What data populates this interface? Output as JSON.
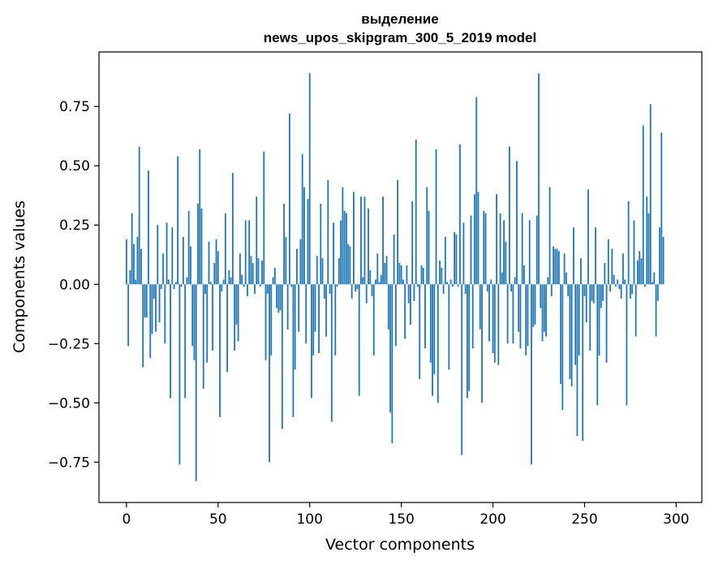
{
  "chart_data": {
    "type": "bar",
    "title_line1": "выделение",
    "title_line2": "news_upos_skipgram_300_5_2019 model",
    "xlabel": "Vector components",
    "ylabel": "Components values",
    "xlim": [
      -15,
      314
    ],
    "ylim": [
      -0.92,
      0.98
    ],
    "xticks": [
      0,
      50,
      100,
      150,
      200,
      250,
      300
    ],
    "xtick_labels": [
      "0",
      "50",
      "100",
      "150",
      "200",
      "250",
      "300"
    ],
    "yticks": [
      -0.75,
      -0.5,
      -0.25,
      0.0,
      0.25,
      0.5,
      0.75
    ],
    "ytick_labels": [
      "−0.75",
      "−0.50",
      "−0.25",
      "0.00",
      "0.25",
      "0.50",
      "0.75"
    ],
    "bar_color": "#1f77b4",
    "grid": false,
    "values": [
      0.19,
      -0.26,
      0.06,
      0.3,
      0.17,
      0.02,
      0.2,
      0.58,
      0.15,
      -0.35,
      -0.14,
      -0.14,
      0.48,
      -0.31,
      -0.21,
      -0.06,
      -0.2,
      0.25,
      -0.16,
      -0.02,
      0.13,
      -0.25,
      0.26,
      0.02,
      -0.48,
      0.24,
      -0.02,
      0.01,
      0.54,
      -0.76,
      -0.01,
      0.2,
      -0.48,
      0.03,
      0.31,
      0.16,
      -0.26,
      -0.32,
      -0.83,
      0.34,
      0.57,
      0.32,
      -0.44,
      -0.04,
      -0.33,
      0.18,
      0.01,
      -0.28,
      0.09,
      0.19,
      0.14,
      -0.56,
      -0.03,
      0.02,
      0.3,
      -0.37,
      0.06,
      0.03,
      0.47,
      -0.28,
      -0.17,
      -0.24,
      0.13,
      0.04,
      -0.01,
      0.27,
      -0.05,
      0.27,
      0.12,
      0.09,
      -0.04,
      0.37,
      0.11,
      -0.01,
      0.1,
      0.56,
      -0.32,
      -0.04,
      -0.75,
      -0.3,
      0.03,
      0.07,
      -0.1,
      -0.12,
      -0.11,
      -0.61,
      0.34,
      0.2,
      -0.19,
      0.72,
      -0.01,
      -0.56,
      -0.36,
      0.15,
      -0.2,
      0.19,
      0.55,
      0.41,
      -0.25,
      0.36,
      0.89,
      -0.48,
      -0.3,
      -0.2,
      0.12,
      -0.29,
      0.34,
      0.11,
      -0.06,
      -0.22,
      0.44,
      -0.04,
      -0.58,
      0.26,
      -0.3,
      -0.01,
      0.11,
      0.27,
      0.41,
      0.31,
      0.3,
      0.17,
      0.16,
      -0.06,
      0.39,
      -0.03,
      -0.02,
      -0.47,
      0.37,
      0.03,
      0.37,
      -0.08,
      0.32,
      0.06,
      -0.05,
      -0.3,
      0.02,
      0.13,
      0.01,
      0.04,
      0.37,
      0.09,
      0.12,
      -0.19,
      -0.54,
      -0.67,
      0.21,
      -0.26,
      0.44,
      0.09,
      0.08,
      0.02,
      -0.23,
      0.08,
      -0.08,
      -0.17,
      0.35,
      -0.07,
      0.61,
      -0.01,
      -0.4,
      0.08,
      0.07,
      -0.27,
      0.41,
      0.31,
      -0.33,
      -0.47,
      -0.38,
      0.57,
      -0.5,
      0.1,
      0.07,
      -0.04,
      0.2,
      0.01,
      -0.36,
      0.02,
      -0.01,
      0.22,
      0.21,
      -0.01,
      0.59,
      -0.72,
      0.26,
      -0.04,
      -0.48,
      -0.45,
      0.29,
      -0.27,
      0.38,
      0.79,
      0.39,
      -0.19,
      -0.5,
      0.31,
      0.3,
      -0.03,
      -0.24,
      0.02,
      -0.29,
      -0.33,
      0.38,
      -0.34,
      0.3,
      0.05,
      0.27,
      0.18,
      -0.25,
      0.58,
      -0.03,
      -0.25,
      0.03,
      0.52,
      -0.2,
      -0.27,
      0.3,
      0.08,
      -0.3,
      -0.26,
      0.27,
      -0.76,
      -0.18,
      -0.17,
      0.29,
      0.89,
      -0.1,
      -0.24,
      -0.2,
      -0.22,
      0.03,
      0.41,
      -0.05,
      0.16,
      0.15,
      0.15,
      0.14,
      -0.42,
      -0.53,
      0.13,
      0.05,
      -0.05,
      -0.4,
      -0.43,
      0.24,
      -0.34,
      -0.64,
      -0.3,
      0.11,
      -0.66,
      -0.05,
      -0.16,
      0.4,
      -0.28,
      -0.07,
      -0.08,
      0.24,
      -0.51,
      -0.3,
      -0.1,
      -0.07,
      0.09,
      -0.33,
      0.19,
      -0.03,
      0.15,
      0.04,
      -0.01,
      0.02,
      -0.02,
      -0.06,
      0.13,
      0.02,
      -0.51,
      0.35,
      -0.06,
      -0.04,
      0.27,
      -0.22,
      0.1,
      0.14,
      0.11,
      0.67,
      -0.01,
      0.37,
      0.3,
      0.76,
      0.01,
      0.05,
      -0.22,
      -0.07,
      0.24,
      0.64,
      0.2
    ]
  }
}
